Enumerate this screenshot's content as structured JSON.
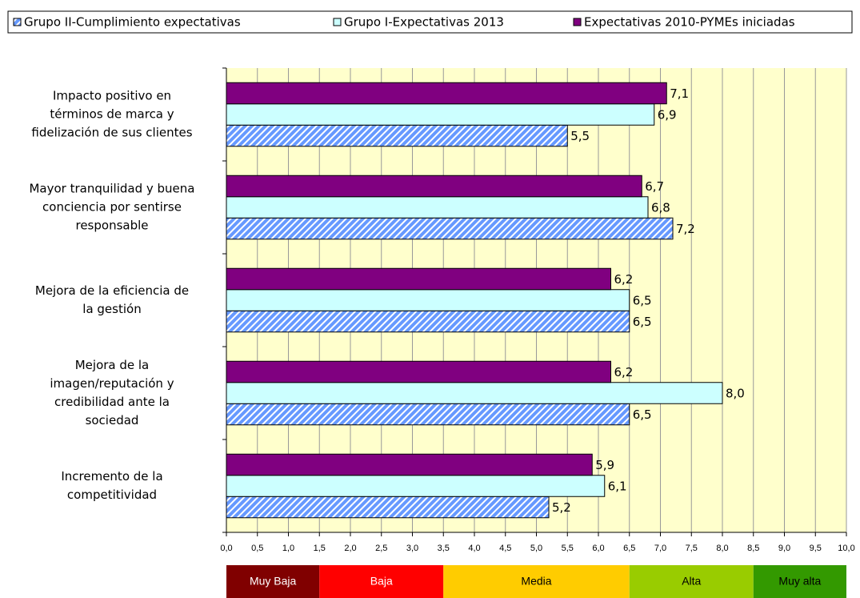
{
  "chart_data": {
    "type": "barh",
    "categories": [
      [
        "Impacto positivo en",
        "términos de marca y",
        "fidelización de sus clientes"
      ],
      [
        "Mayor tranquilidad y buena",
        "conciencia por sentirse",
        "responsable"
      ],
      [
        "Mejora de la eficiencia de",
        "la gestión"
      ],
      [
        "Mejora de la",
        "imagen/reputación y",
        "credibilidad ante la",
        "sociedad"
      ],
      [
        "Incremento de la",
        "competitividad"
      ]
    ],
    "series": [
      {
        "name": "Grupo II-Cumplimiento expectativas",
        "color": "#6699ff",
        "hatch": true,
        "values": [
          5.5,
          7.2,
          6.5,
          6.5,
          5.2
        ],
        "value_labels": [
          "5,5",
          "7,2",
          "6,5",
          "6,5",
          "5,2"
        ]
      },
      {
        "name": "Grupo I-Expectativas 2013",
        "color": "#ccffff",
        "values": [
          6.9,
          6.8,
          6.5,
          8.0,
          6.1
        ],
        "value_labels": [
          "6,9",
          "6,8",
          "6,5",
          "8,0",
          "6,1"
        ]
      },
      {
        "name": "Expectativas 2010-PYMEs iniciadas",
        "color": "#800080",
        "values": [
          7.1,
          6.7,
          6.2,
          6.2,
          5.9
        ],
        "value_labels": [
          "7,1",
          "6,7",
          "6,2",
          "6,2",
          "5,9"
        ]
      }
    ],
    "xlim": [
      0,
      10
    ],
    "xticks": [
      {
        "value": 0,
        "label": "0,0"
      },
      {
        "value": 0.5,
        "label": "0,5"
      },
      {
        "value": 1,
        "label": "1,0"
      },
      {
        "value": 1.5,
        "label": "1,5"
      },
      {
        "value": 2,
        "label": "2,0"
      },
      {
        "value": 2.5,
        "label": "2,5"
      },
      {
        "value": 3,
        "label": "3,0"
      },
      {
        "value": 3.5,
        "label": "3,5"
      },
      {
        "value": 4,
        "label": "4,0"
      },
      {
        "value": 4.5,
        "label": "4,5"
      },
      {
        "value": 5,
        "label": "5,0"
      },
      {
        "value": 5.5,
        "label": "5,5"
      },
      {
        "value": 6,
        "label": "6,0"
      },
      {
        "value": 6.5,
        "label": "6,5"
      },
      {
        "value": 7,
        "label": "7,0"
      },
      {
        "value": 7.5,
        "label": "7,5"
      },
      {
        "value": 8,
        "label": "8,0"
      },
      {
        "value": 8.5,
        "label": "8,5"
      },
      {
        "value": 9,
        "label": "9,0"
      },
      {
        "value": 9.5,
        "label": "9,5"
      },
      {
        "value": 10,
        "label": "10,0"
      }
    ],
    "grid": true,
    "legend": "top",
    "scale_bands": [
      {
        "label": "Muy Baja",
        "from": 0,
        "to": 1.5,
        "color": "#800000"
      },
      {
        "label": "Baja",
        "from": 1.5,
        "to": 3.5,
        "color": "#ff0000"
      },
      {
        "label": "Media",
        "from": 3.5,
        "to": 6.5,
        "color": "#ffcc00"
      },
      {
        "label": "Alta",
        "from": 6.5,
        "to": 8.5,
        "color": "#99cc00"
      },
      {
        "label": "Muy alta",
        "from": 8.5,
        "to": 10,
        "color": "#339900"
      }
    ]
  }
}
